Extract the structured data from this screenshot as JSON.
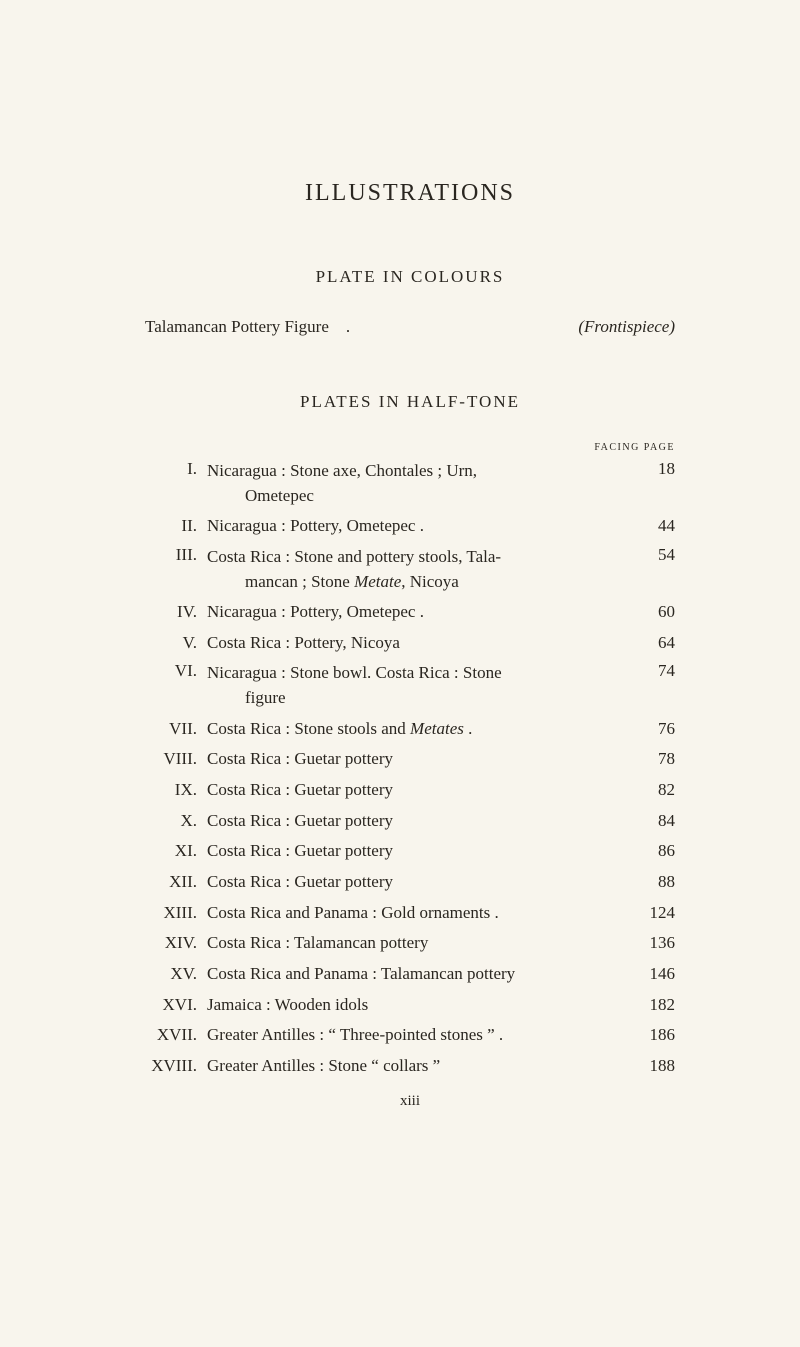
{
  "headings": {
    "main": "ILLUSTRATIONS",
    "plate_colours": "PLATE IN COLOURS",
    "plates_halftone": "PLATES IN HALF-TONE",
    "facing_page": "FACING PAGE"
  },
  "colour_entry": {
    "desc": "Talamancan Pottery Figure",
    "ref": "(Frontispiece)"
  },
  "entries": [
    {
      "roman": "I.",
      "line1": "Nicaragua : Stone axe, Chontales ; Urn,",
      "line2": "Ometepec",
      "page": "18"
    },
    {
      "roman": "II.",
      "line1": "Nicaragua : Pottery, Ometepec .",
      "page": "44"
    },
    {
      "roman": "III.",
      "line1": "Costa Rica : Stone and pottery stools, Tala-",
      "line2_prefix": "mancan ; Stone ",
      "line2_italic": "Metate",
      "line2_suffix": ", Nicoya",
      "page": "54"
    },
    {
      "roman": "IV.",
      "line1": "Nicaragua : Pottery, Ometepec .",
      "page": "60"
    },
    {
      "roman": "V.",
      "line1": "Costa Rica : Pottery, Nicoya",
      "page": "64"
    },
    {
      "roman": "VI.",
      "line1": "Nicaragua : Stone bowl. Costa Rica : Stone",
      "line2": "figure",
      "page": "74"
    },
    {
      "roman": "VII.",
      "line1_prefix": "Costa Rica : Stone stools and ",
      "line1_italic": "Metates",
      "line1_suffix": " .",
      "page": "76"
    },
    {
      "roman": "VIII.",
      "line1": "Costa Rica : Guetar pottery",
      "page": "78"
    },
    {
      "roman": "IX.",
      "line1": "Costa Rica : Guetar pottery",
      "page": "82"
    },
    {
      "roman": "X.",
      "line1": "Costa Rica : Guetar pottery",
      "page": "84"
    },
    {
      "roman": "XI.",
      "line1": "Costa Rica : Guetar pottery",
      "page": "86"
    },
    {
      "roman": "XII.",
      "line1": "Costa Rica : Guetar pottery",
      "page": "88"
    },
    {
      "roman": "XIII.",
      "line1": "Costa Rica and Panama : Gold ornaments .",
      "page": "124"
    },
    {
      "roman": "XIV.",
      "line1": "Costa Rica : Talamancan pottery",
      "page": "136"
    },
    {
      "roman": "XV.",
      "line1": "Costa Rica and Panama : Talamancan pottery",
      "page": "146"
    },
    {
      "roman": "XVI.",
      "line1": "Jamaica : Wooden idols",
      "page": "182"
    },
    {
      "roman": "XVII.",
      "line1": "Greater Antilles : “ Three-pointed stones ” .",
      "page": "186"
    },
    {
      "roman": "XVIII.",
      "line1": "Greater Antilles : Stone “ collars ”",
      "page": "188"
    }
  ],
  "page_number": "xiii"
}
